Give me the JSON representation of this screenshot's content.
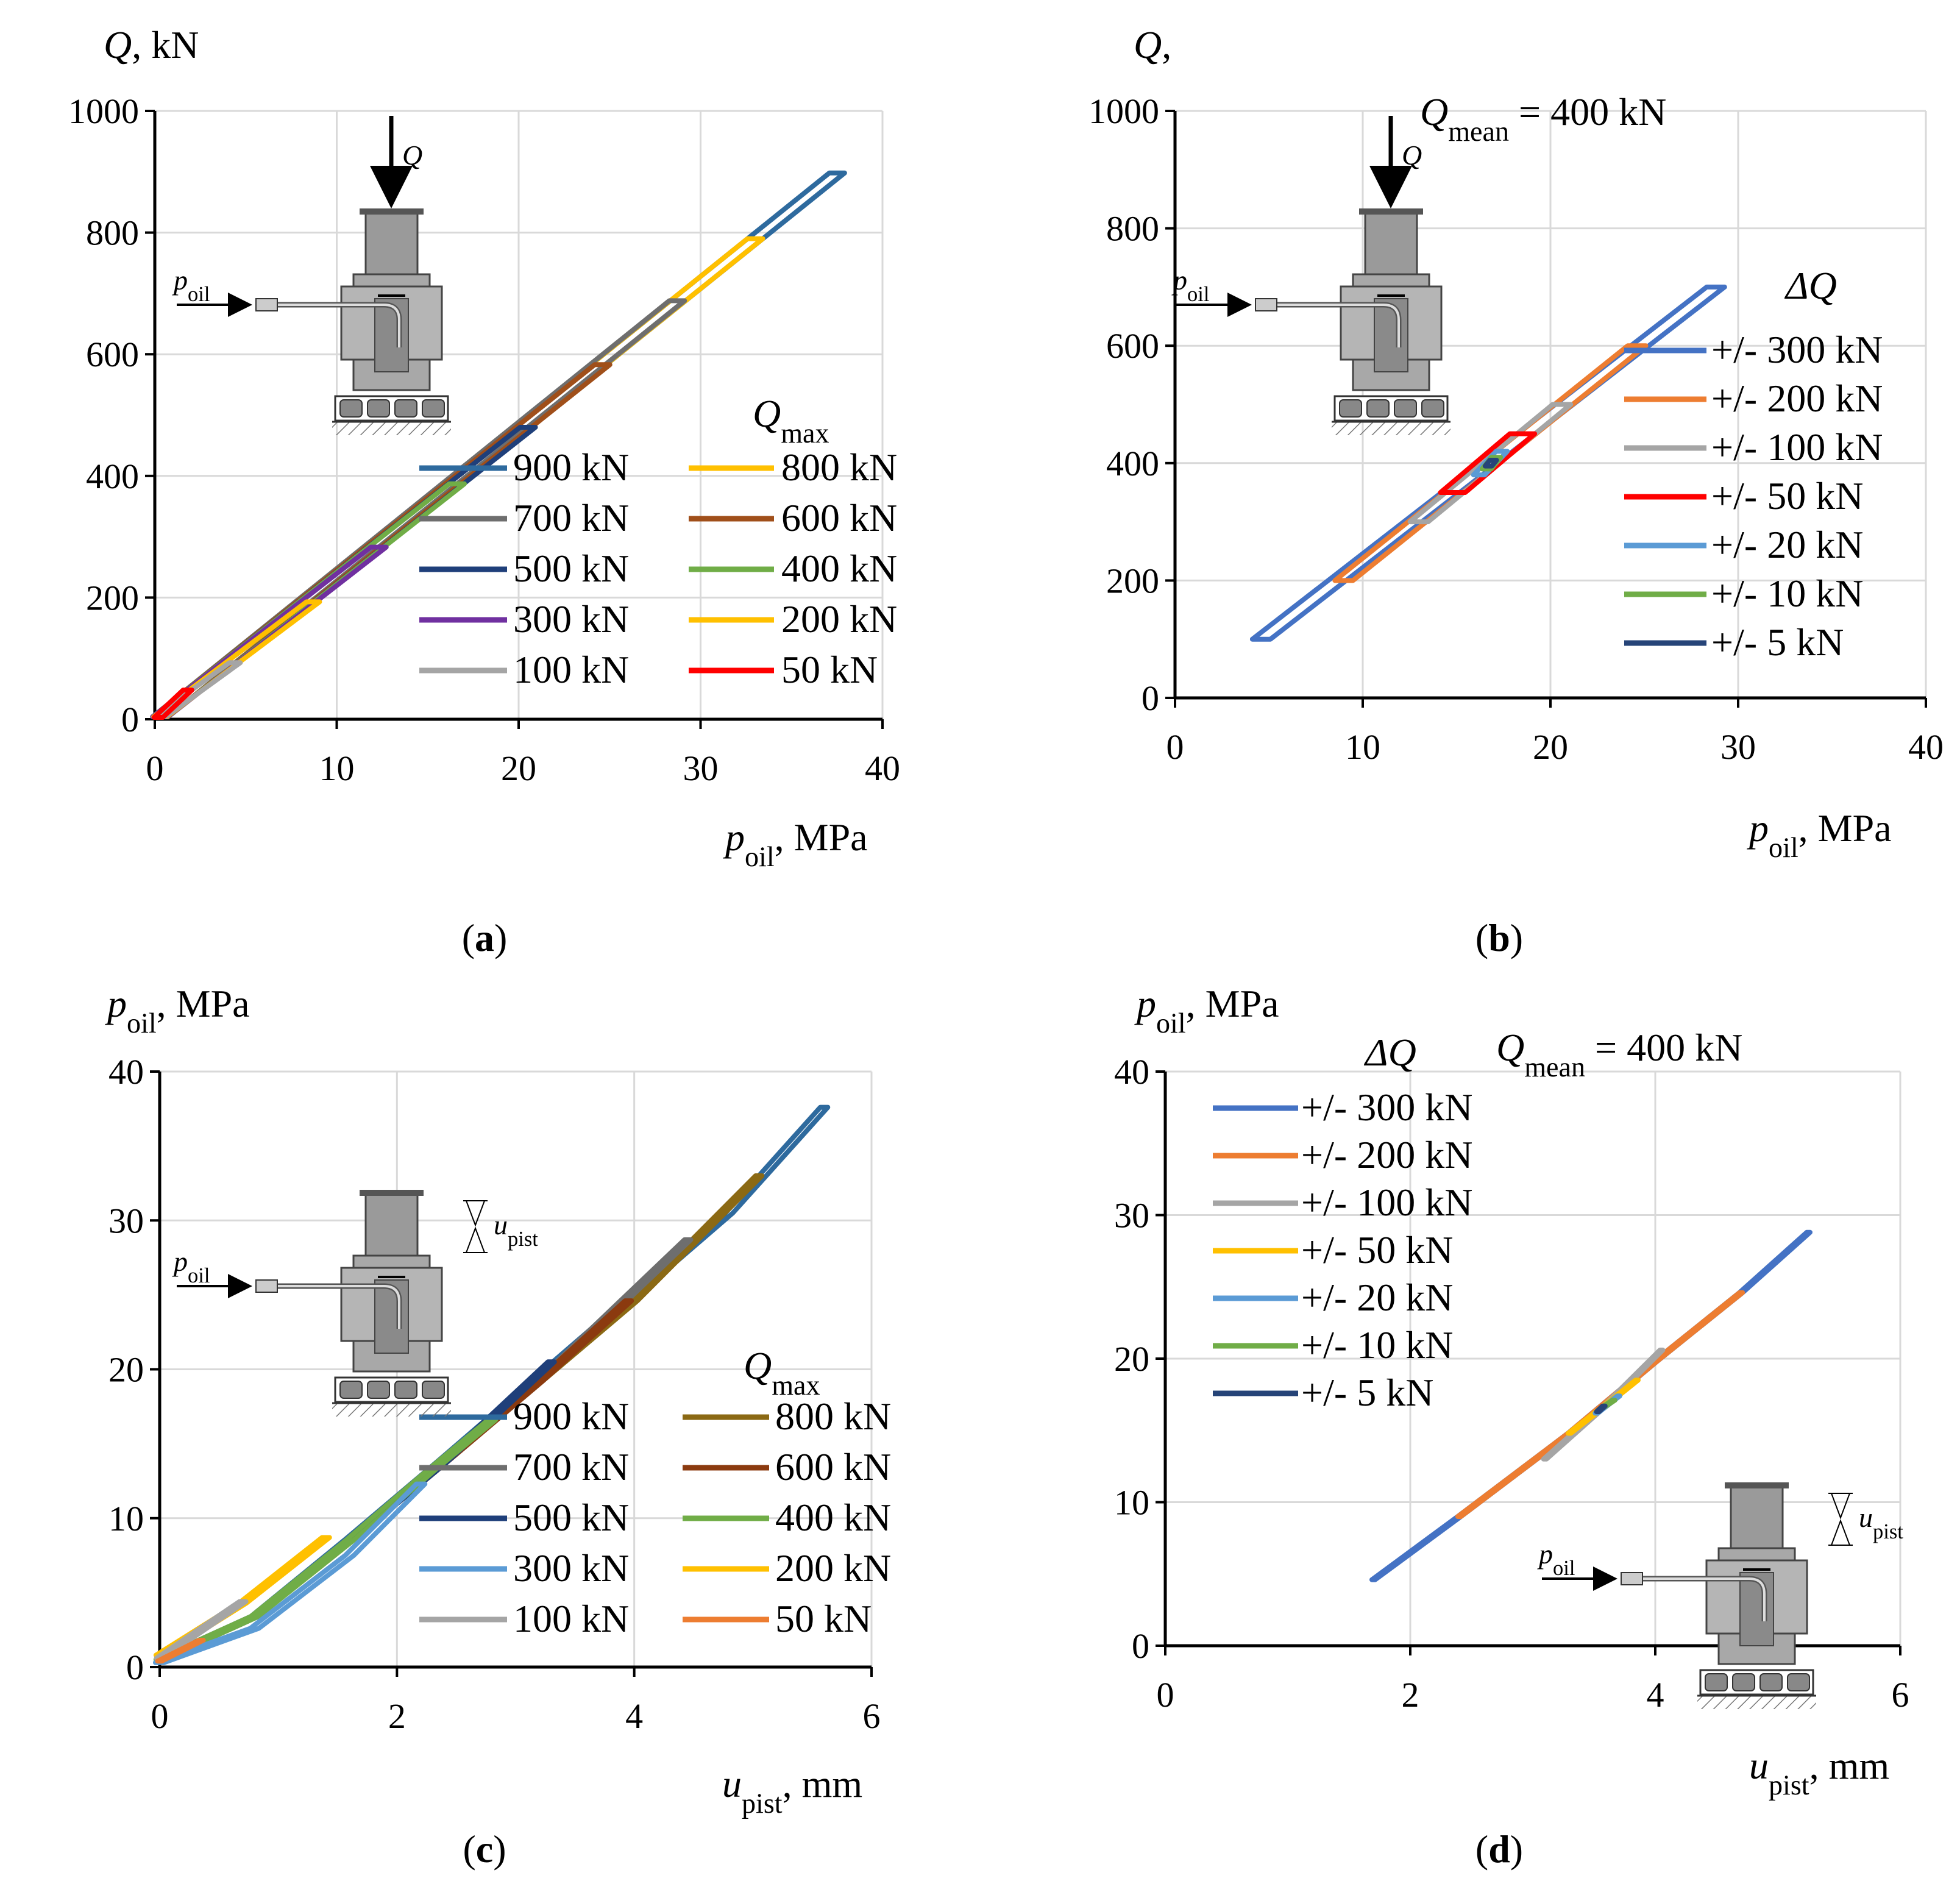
{
  "chart_data": [
    {
      "id": "a",
      "type": "line",
      "caption": "a",
      "ylabel_var": "Q",
      "ylabel_unit": ", kN",
      "xlabel_var": "p",
      "xlabel_sub": "oil",
      "xlabel_unit": ", MPa",
      "xlim": [
        0,
        40
      ],
      "ylim": [
        0,
        1000
      ],
      "xticks": [
        "0",
        "10",
        "20",
        "30",
        "40"
      ],
      "yticks": [
        "0",
        "200",
        "400",
        "600",
        "800",
        "1000"
      ],
      "grid": true,
      "legend_title_var": "Q",
      "legend_title_sub": "max",
      "legend_columns": 2,
      "legend_position": "bottom-right",
      "icon": {
        "label_var": "p",
        "label_sub": "oil",
        "load_var": "Q"
      },
      "series": [
        {
          "name": "900 kN",
          "color": "#2E6A9E",
          "points": [
            [
              0.3,
              4
            ],
            [
              37.5,
              898
            ]
          ],
          "width": 0.7
        },
        {
          "name": "800 kN",
          "color": "#FFC000",
          "points": [
            [
              0.3,
              4
            ],
            [
              33.0,
              790
            ]
          ],
          "width": 0.7
        },
        {
          "name": "700 kN",
          "color": "#6E6E6E",
          "points": [
            [
              0.3,
              4
            ],
            [
              28.7,
              688
            ]
          ],
          "width": 0.7
        },
        {
          "name": "600 kN",
          "color": "#A04F1A",
          "points": [
            [
              0.3,
              4
            ],
            [
              24.6,
              583
            ]
          ],
          "width": 0.7
        },
        {
          "name": "500 kN",
          "color": "#1F3F7A",
          "points": [
            [
              0.3,
              4
            ],
            [
              20.5,
              480
            ]
          ],
          "width": 0.7
        },
        {
          "name": "400 kN",
          "color": "#70AD47",
          "points": [
            [
              0.3,
              4
            ],
            [
              16.6,
              387
            ]
          ],
          "width": 0.7
        },
        {
          "name": "300 kN",
          "color": "#7030A0",
          "points": [
            [
              0.3,
              4
            ],
            [
              12.3,
              283
            ]
          ],
          "width": 0.7
        },
        {
          "name": "200 kN",
          "color": "#FFC000",
          "points": [
            [
              0.3,
              4
            ],
            [
              8.7,
              193
            ]
          ],
          "width": 0.6
        },
        {
          "name": "100 kN",
          "color": "#A5A5A5",
          "points": [
            [
              0.3,
              4
            ],
            [
              4.4,
              93
            ]
          ],
          "width": 0.5
        },
        {
          "name": "50 kN",
          "color": "#FF0000",
          "points": [
            [
              0.2,
              3
            ],
            [
              1.8,
              48
            ]
          ],
          "width": 0.4
        }
      ]
    },
    {
      "id": "b",
      "type": "line",
      "caption": "b",
      "ylabel_var": "Q",
      "ylabel_unit": ",",
      "xlabel_var": "p",
      "xlabel_sub": "oil",
      "xlabel_unit": ", MPa",
      "xlim": [
        0,
        40
      ],
      "ylim": [
        0,
        1000
      ],
      "xticks": [
        "0",
        "10",
        "20",
        "30",
        "40"
      ],
      "yticks": [
        "0",
        "200",
        "400",
        "600",
        "800",
        "1000"
      ],
      "grid": true,
      "annotation_var": "Q",
      "annotation_sub": "mean",
      "annotation_rest": " = 400 kN",
      "legend_title": "ΔQ",
      "legend_columns": 1,
      "legend_position": "right",
      "icon": {
        "label_var": "p",
        "label_sub": "oil",
        "load_var": "Q"
      },
      "series": [
        {
          "name": "+/- 300 kN",
          "color": "#4472C4",
          "points": [
            [
              4.6,
              100
            ],
            [
              28.8,
              700
            ]
          ],
          "width": 0.8
        },
        {
          "name": "+/- 200 kN",
          "color": "#ED7D31",
          "points": [
            [
              9.0,
              200
            ],
            [
              24.6,
              600
            ]
          ],
          "width": 0.8
        },
        {
          "name": "+/- 100 kN",
          "color": "#A5A5A5",
          "points": [
            [
              13.0,
              300
            ],
            [
              20.6,
              500
            ]
          ],
          "width": 0.8
        },
        {
          "name": "+/- 50 kN",
          "color": "#FF0000",
          "points": [
            [
              14.8,
              350
            ],
            [
              18.5,
              450
            ]
          ],
          "width": 1.1
        },
        {
          "name": "+/- 20 kN",
          "color": "#5B9BD5",
          "points": [
            [
              16.2,
              380
            ],
            [
              17.4,
              420
            ]
          ],
          "width": 0.5
        },
        {
          "name": "+/- 10 kN",
          "color": "#70AD47",
          "points": [
            [
              16.6,
              390
            ],
            [
              17.1,
              410
            ]
          ],
          "width": 0.4
        },
        {
          "name": "+/- 5 kN",
          "color": "#264478",
          "points": [
            [
              16.7,
              395
            ],
            [
              16.95,
              405
            ]
          ],
          "width": 0.3
        }
      ]
    },
    {
      "id": "c",
      "type": "line",
      "caption": "c",
      "ylabel_var": "p",
      "ylabel_sub": "oil",
      "ylabel_unit": ", MPa",
      "xlabel_var": "u",
      "xlabel_sub": "pist",
      "xlabel_unit": ", mm",
      "xlim": [
        0,
        6
      ],
      "ylim": [
        0,
        40
      ],
      "xticks": [
        "0",
        "2",
        "4",
        "6"
      ],
      "yticks": [
        "0",
        "10",
        "20",
        "30",
        "40"
      ],
      "grid": true,
      "legend_title_var": "Q",
      "legend_title_sub": "max",
      "legend_columns": 2,
      "legend_position": "bottom-right",
      "icon": {
        "label_var": "p",
        "label_sub": "oil",
        "disp_var": "u",
        "disp_sub": "pist"
      },
      "series": [
        {
          "name": "900 kN",
          "color": "#2E6A9E",
          "points": [
            [
              0.0,
              0.5
            ],
            [
              0.8,
              3.4
            ],
            [
              1.6,
              8.6
            ],
            [
              2.4,
              14.0
            ],
            [
              3.2,
              19.5
            ],
            [
              4.0,
              25.0
            ],
            [
              4.8,
              30.5
            ],
            [
              5.6,
              37.6
            ]
          ],
          "width": 0.35
        },
        {
          "name": "800 kN",
          "color": "#8B6914",
          "points": [
            [
              0.0,
              0.5
            ],
            [
              0.8,
              3.4
            ],
            [
              1.6,
              8.5
            ],
            [
              2.4,
              13.8
            ],
            [
              3.2,
              19.2
            ],
            [
              4.0,
              24.6
            ],
            [
              5.05,
              33.0
            ]
          ],
          "width": 0.3
        },
        {
          "name": "700 kN",
          "color": "#6E6E6E",
          "points": [
            [
              0.0,
              0.5
            ],
            [
              0.8,
              3.4
            ],
            [
              1.6,
              8.5
            ],
            [
              2.4,
              13.8
            ],
            [
              3.2,
              19.2
            ],
            [
              4.45,
              28.7
            ]
          ],
          "width": 0.3
        },
        {
          "name": "600 kN",
          "color": "#8B3A0F",
          "points": [
            [
              0.0,
              0.5
            ],
            [
              0.8,
              3.4
            ],
            [
              1.6,
              8.5
            ],
            [
              2.4,
              13.8
            ],
            [
              3.2,
              19.2
            ],
            [
              3.95,
              24.6
            ]
          ],
          "width": 0.3
        },
        {
          "name": "500 kN",
          "color": "#1F3F7A",
          "points": [
            [
              0.0,
              0.5
            ],
            [
              0.8,
              3.4
            ],
            [
              1.6,
              8.5
            ],
            [
              2.4,
              13.8
            ],
            [
              3.3,
              20.5
            ]
          ],
          "width": 0.3
        },
        {
          "name": "400 kN",
          "color": "#70AD47",
          "points": [
            [
              0.0,
              0.5
            ],
            [
              0.8,
              3.4
            ],
            [
              1.6,
              8.5
            ],
            [
              2.3,
              13.3
            ],
            [
              2.8,
              16.6
            ]
          ],
          "width": 0.35
        },
        {
          "name": "300 kN",
          "color": "#5B9BD5",
          "points": [
            [
              0.0,
              0.3
            ],
            [
              0.8,
              2.6
            ],
            [
              1.6,
              7.5
            ],
            [
              2.2,
              12.3
            ]
          ],
          "width": 0.4
        },
        {
          "name": "200 kN",
          "color": "#FFC000",
          "points": [
            [
              0.0,
              0.8
            ],
            [
              0.7,
              4.3
            ],
            [
              1.4,
              8.7
            ]
          ],
          "width": 0.35
        },
        {
          "name": "100 kN",
          "color": "#A5A5A5",
          "points": [
            [
              0.0,
              0.6
            ],
            [
              0.7,
              4.4
            ]
          ],
          "width": 0.3
        },
        {
          "name": "50 kN",
          "color": "#ED7D31",
          "points": [
            [
              0.0,
              0.4
            ],
            [
              0.35,
              1.8
            ]
          ],
          "width": 0.2
        }
      ]
    },
    {
      "id": "d",
      "type": "line",
      "caption": "d",
      "ylabel_var": "p",
      "ylabel_sub": "oil",
      "ylabel_unit": ", MPa",
      "xlabel_var": "u",
      "xlabel_sub": "pist",
      "xlabel_unit": ", mm",
      "xlim": [
        0,
        6
      ],
      "ylim": [
        0,
        40
      ],
      "xticks": [
        "0",
        "2",
        "4",
        "6"
      ],
      "yticks": [
        "0",
        "10",
        "20",
        "30",
        "40"
      ],
      "grid": true,
      "annotation_var": "Q",
      "annotation_sub": "mean",
      "annotation_rest": " = 400 kN",
      "legend_title": "ΔQ",
      "legend_columns": 1,
      "legend_position": "top-left",
      "icon": {
        "label_var": "p",
        "label_sub": "oil",
        "disp_var": "u",
        "disp_sub": "pist"
      },
      "series": [
        {
          "name": "+/- 300 kN",
          "color": "#4472C4",
          "points": [
            [
              1.7,
              4.6
            ],
            [
              2.4,
              9.0
            ],
            [
              3.3,
              14.8
            ],
            [
              4.0,
              19.8
            ],
            [
              4.7,
              24.6
            ],
            [
              5.25,
              28.8
            ]
          ],
          "width": 0.15
        },
        {
          "name": "+/- 200 kN",
          "color": "#ED7D31",
          "points": [
            [
              2.4,
              9.0
            ],
            [
              3.3,
              14.8
            ],
            [
              4.0,
              19.8
            ],
            [
              4.7,
              24.6
            ]
          ],
          "width": 0.14
        },
        {
          "name": "+/- 100 kN",
          "color": "#A5A5A5",
          "points": [
            [
              3.1,
              13.0
            ],
            [
              3.6,
              16.8
            ],
            [
              4.05,
              20.6
            ]
          ],
          "width": 0.13
        },
        {
          "name": "+/- 50 kN",
          "color": "#FFC000",
          "points": [
            [
              3.3,
              14.8
            ],
            [
              3.6,
              16.8
            ],
            [
              3.85,
              18.5
            ]
          ],
          "width": 0.12
        },
        {
          "name": "+/- 20 kN",
          "color": "#5B9BD5",
          "points": [
            [
              3.52,
              16.2
            ],
            [
              3.7,
              17.4
            ]
          ],
          "width": 0.12
        },
        {
          "name": "+/- 10 kN",
          "color": "#70AD47",
          "points": [
            [
              3.57,
              16.6
            ],
            [
              3.66,
              17.1
            ]
          ],
          "width": 0.12
        },
        {
          "name": "+/- 5 kN",
          "color": "#264478",
          "points": [
            [
              3.53,
              16.3
            ],
            [
              3.58,
              16.7
            ]
          ],
          "width": 0.12
        }
      ]
    }
  ]
}
